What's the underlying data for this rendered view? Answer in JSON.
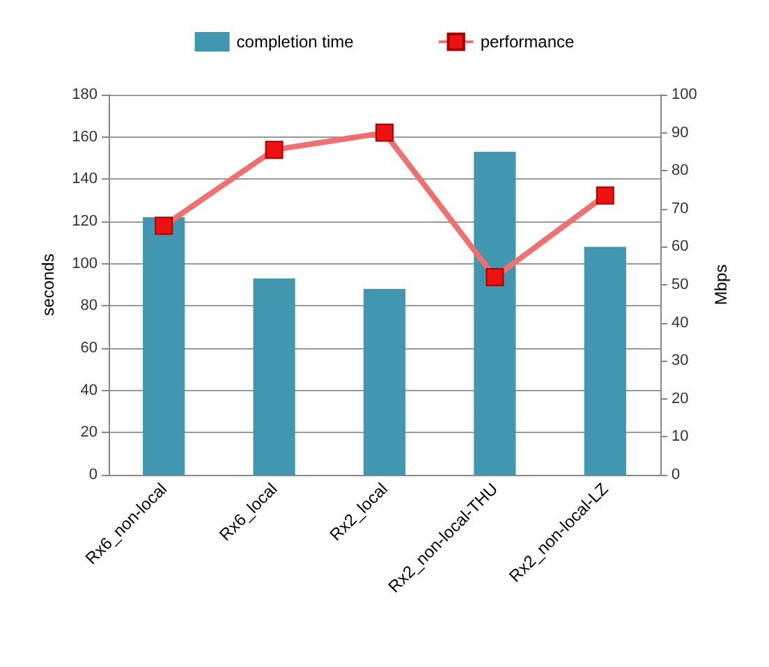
{
  "chart_data": {
    "type": "bar",
    "ylabel": "seconds",
    "y2label": "Mbps",
    "categories": [
      "Rx6_non-local",
      "Rx6_local",
      "Rx2_local",
      "Rx2_non-local-THU",
      "Rx2_non-local-LZ"
    ],
    "series": [
      {
        "name": "completion time",
        "type": "bar",
        "color": "#4196b0",
        "values": [
          122,
          93,
          88,
          153,
          108
        ]
      },
      {
        "name": "performance",
        "type": "line",
        "axis": "y2",
        "color": "#f07070",
        "values": [
          65.5,
          85.5,
          90,
          52,
          73.5
        ]
      }
    ],
    "ylim": [
      0,
      180
    ],
    "yticks": [
      0,
      20,
      40,
      60,
      80,
      100,
      120,
      140,
      160,
      180
    ],
    "y2lim": [
      0,
      100
    ],
    "y2ticks": [
      0,
      10,
      20,
      30,
      40,
      50,
      60,
      70,
      80,
      90,
      100
    ],
    "grid": "y",
    "legend": "top",
    "marker": "square"
  }
}
